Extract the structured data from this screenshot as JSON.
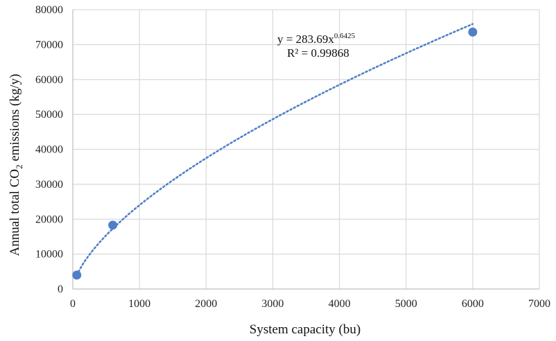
{
  "chart_data": {
    "type": "scatter",
    "title": "",
    "xlabel": "System capacity (bu)",
    "ylabel": {
      "prefix": "Annual total CO",
      "subscript": "2",
      "suffix": " emissions (kg/y)"
    },
    "xlim": [
      0,
      7000
    ],
    "ylim": [
      0,
      80000
    ],
    "x_ticks": [
      0,
      1000,
      2000,
      3000,
      4000,
      5000,
      6000,
      7000
    ],
    "y_ticks": [
      0,
      10000,
      20000,
      30000,
      40000,
      50000,
      60000,
      70000,
      80000
    ],
    "grid": true,
    "legend": "none",
    "series": [
      {
        "points": [
          {
            "x": 60,
            "y": 4000
          },
          {
            "x": 600,
            "y": 18300
          },
          {
            "x": 6000,
            "y": 73600
          }
        ]
      }
    ],
    "trendline": {
      "type": "power",
      "coefficient": 283.69,
      "exponent": 0.6425,
      "x_range": [
        60,
        6000
      ],
      "style": "dotted"
    },
    "annotation": {
      "equation_prefix": "y = 283.69x",
      "equation_exponent": "0.6425",
      "r_squared": "R² = 0.99868"
    },
    "colors": {
      "series": "#4f7fc9",
      "trendline": "#4f7fc9",
      "grid": "#d9d9d9",
      "axis": "#bfbfbf"
    }
  }
}
